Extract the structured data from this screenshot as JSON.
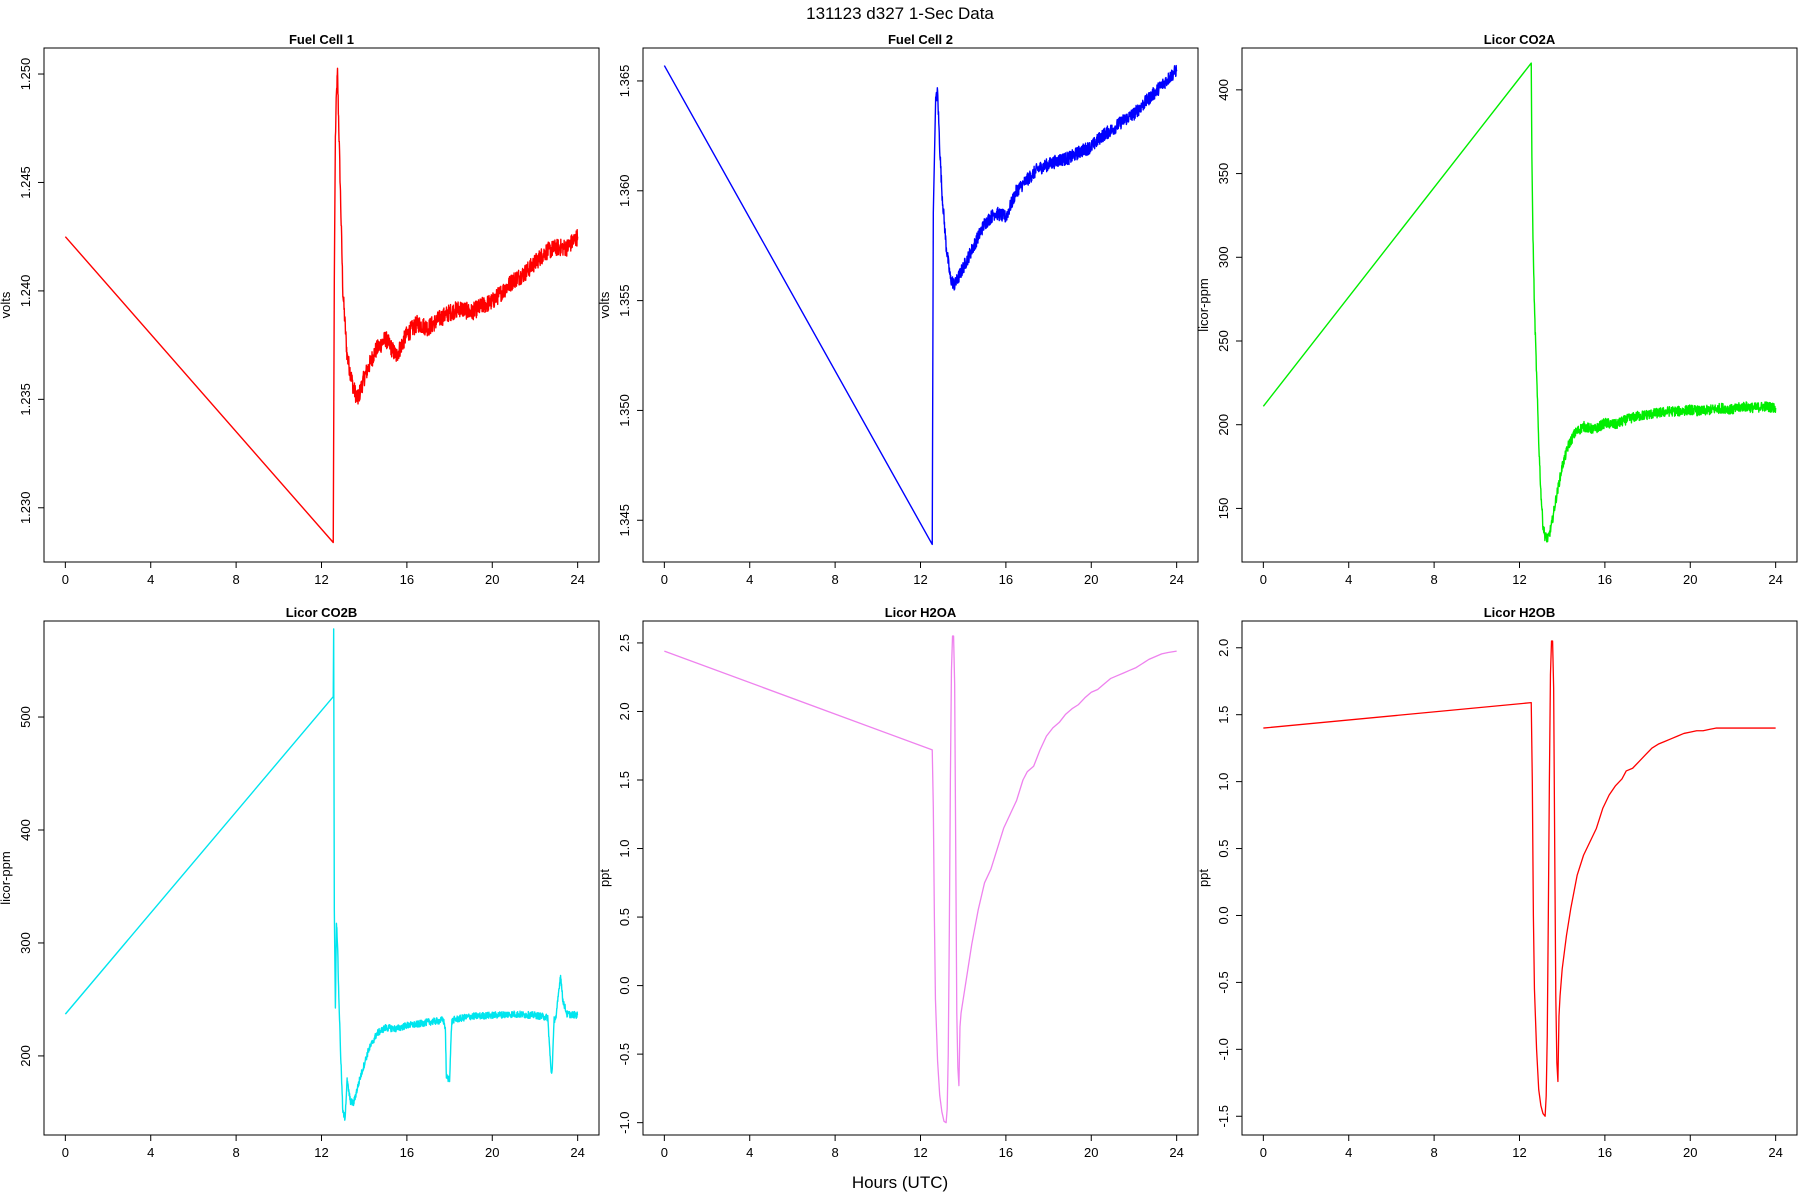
{
  "figure": {
    "title": "131123   d327   1-Sec Data",
    "xlabel": "Hours (UTC)"
  },
  "chart_data": [
    {
      "type": "line",
      "title": "Fuel Cell 1",
      "ylabel": "volts",
      "color": "#ff0000",
      "xlim": [
        -1,
        25
      ],
      "ylim": [
        1.2275,
        1.2512
      ],
      "xticks": [
        0,
        4,
        8,
        12,
        16,
        20,
        24
      ],
      "yticks": [
        1.23,
        1.235,
        1.24,
        1.245,
        1.25
      ],
      "ytick_labels": [
        "1.230",
        "1.235",
        "1.240",
        "1.245",
        "1.250"
      ],
      "noise": 0.0004,
      "x": [
        0,
        12.55,
        12.6,
        12.65,
        12.7,
        12.75,
        12.8,
        12.9,
        13.0,
        13.2,
        13.5,
        13.7,
        14.0,
        14.5,
        15.0,
        15.5,
        16.0,
        16.5,
        17.0,
        17.5,
        18.0,
        18.5,
        19.0,
        19.5,
        20.0,
        20.5,
        21.0,
        21.5,
        22.0,
        22.5,
        23.0,
        23.5,
        24.0
      ],
      "y": [
        1.2425,
        1.2284,
        1.2405,
        1.247,
        1.249,
        1.25,
        1.248,
        1.244,
        1.24,
        1.237,
        1.2355,
        1.235,
        1.236,
        1.2372,
        1.2378,
        1.237,
        1.238,
        1.2385,
        1.2383,
        1.2387,
        1.239,
        1.2392,
        1.239,
        1.2393,
        1.2395,
        1.24,
        1.2405,
        1.2408,
        1.2413,
        1.2418,
        1.242,
        1.242,
        1.2425
      ]
    },
    {
      "type": "line",
      "title": "Fuel Cell 2",
      "ylabel": "volts",
      "color": "#0000ff",
      "xlim": [
        -1,
        25
      ],
      "ylim": [
        1.3431,
        1.3665
      ],
      "xticks": [
        0,
        4,
        8,
        12,
        16,
        20,
        24
      ],
      "yticks": [
        1.345,
        1.35,
        1.355,
        1.36,
        1.365
      ],
      "ytick_labels": [
        "1.345",
        "1.350",
        "1.355",
        "1.360",
        "1.365"
      ],
      "noise": 0.0003,
      "x": [
        0,
        12.55,
        12.6,
        12.7,
        12.8,
        12.9,
        13.0,
        13.2,
        13.4,
        13.6,
        14.0,
        14.5,
        15.0,
        15.5,
        16.0,
        16.5,
        17.0,
        17.5,
        18.0,
        18.5,
        19.0,
        19.5,
        20.0,
        20.5,
        21.0,
        21.5,
        22.0,
        22.5,
        23.0,
        23.5,
        24.0
      ],
      "y": [
        1.3657,
        1.3439,
        1.359,
        1.364,
        1.3645,
        1.362,
        1.36,
        1.3575,
        1.356,
        1.3557,
        1.3565,
        1.3575,
        1.3585,
        1.359,
        1.3588,
        1.36,
        1.3605,
        1.361,
        1.3612,
        1.3614,
        1.3615,
        1.3618,
        1.362,
        1.3625,
        1.3628,
        1.3632,
        1.3635,
        1.364,
        1.3645,
        1.365,
        1.3655
      ]
    },
    {
      "type": "line",
      "title": "Licor CO2A",
      "ylabel": "licor-ppm",
      "color": "#00ee00",
      "xlim": [
        -1,
        25
      ],
      "ylim": [
        118,
        425
      ],
      "xticks": [
        0,
        4,
        8,
        12,
        16,
        20,
        24
      ],
      "yticks": [
        150,
        200,
        250,
        300,
        350,
        400
      ],
      "ytick_labels": [
        "150",
        "200",
        "250",
        "300",
        "350",
        "400"
      ],
      "noise": 3,
      "x": [
        0,
        12.55,
        12.58,
        12.62,
        12.7,
        12.8,
        12.9,
        13.0,
        13.1,
        13.2,
        13.35,
        13.5,
        13.7,
        14.0,
        14.3,
        14.6,
        15.0,
        15.5,
        16.0,
        16.5,
        17.0,
        17.5,
        18.0,
        18.5,
        19.0,
        19.5,
        20.0,
        20.5,
        21.0,
        21.5,
        22.0,
        22.5,
        23.0,
        23.5,
        24.0
      ],
      "y": [
        211,
        416,
        360,
        320,
        270,
        230,
        190,
        160,
        140,
        133,
        132,
        140,
        155,
        175,
        188,
        195,
        199,
        197,
        201,
        200,
        203,
        205,
        206,
        207,
        208,
        208,
        209,
        208,
        209,
        210,
        209,
        211,
        210,
        211,
        210
      ]
    },
    {
      "type": "line",
      "title": "Licor CO2B",
      "ylabel": "licor-ppm",
      "color": "#00e5ee",
      "xlim": [
        -1,
        25
      ],
      "ylim": [
        130,
        585
      ],
      "xticks": [
        0,
        4,
        8,
        12,
        16,
        20,
        24
      ],
      "yticks": [
        200,
        300,
        400,
        500
      ],
      "ytick_labels": [
        "200",
        "300",
        "400",
        "500"
      ],
      "noise": 3,
      "x": [
        0,
        12.55,
        12.57,
        12.6,
        12.65,
        12.7,
        12.75,
        12.8,
        12.9,
        13.0,
        13.1,
        13.2,
        13.35,
        13.5,
        13.8,
        14.2,
        14.6,
        15.0,
        15.5,
        16.0,
        16.5,
        17.0,
        17.5,
        17.7,
        17.8,
        17.85,
        17.9,
        18.0,
        18.1,
        18.2,
        19.0,
        20.0,
        21.0,
        22.0,
        22.6,
        22.75,
        22.8,
        22.9,
        23.0,
        23.1,
        23.2,
        23.3,
        23.5,
        24.0
      ],
      "y": [
        237,
        518,
        578,
        330,
        240,
        320,
        300,
        260,
        200,
        150,
        145,
        178,
        160,
        158,
        180,
        205,
        220,
        225,
        224,
        227,
        228,
        230,
        231,
        232,
        225,
        182,
        180,
        180,
        230,
        232,
        235,
        236,
        237,
        236,
        234,
        187,
        186,
        232,
        235,
        255,
        272,
        250,
        237,
        236
      ]
    },
    {
      "type": "line",
      "title": "Licor H2OA",
      "ylabel": "ppt",
      "color": "#ee82ee",
      "xlim": [
        -1,
        25
      ],
      "ylim": [
        -1.09,
        2.66
      ],
      "xticks": [
        0,
        4,
        8,
        12,
        16,
        20,
        24
      ],
      "yticks": [
        -1.0,
        -0.5,
        0.0,
        0.5,
        1.0,
        1.5,
        2.0,
        2.5
      ],
      "ytick_labels": [
        "-1.0",
        "-0.5",
        "0.0",
        "0.5",
        "1.0",
        "1.5",
        "2.0",
        "2.5"
      ],
      "noise": 0,
      "x": [
        0,
        12.55,
        12.6,
        12.65,
        12.7,
        12.8,
        12.9,
        13.0,
        13.1,
        13.2,
        13.25,
        13.3,
        13.35,
        13.4,
        13.45,
        13.5,
        13.55,
        13.6,
        13.65,
        13.7,
        13.75,
        13.8,
        13.85,
        13.9,
        14.0,
        14.2,
        14.4,
        14.7,
        15.0,
        15.3,
        15.6,
        15.9,
        16.2,
        16.5,
        16.8,
        17.0,
        17.3,
        17.6,
        17.9,
        18.2,
        18.5,
        18.8,
        19.1,
        19.4,
        19.7,
        20.0,
        20.3,
        20.6,
        20.9,
        21.2,
        21.5,
        21.8,
        22.1,
        22.4,
        22.7,
        23.0,
        23.3,
        23.6,
        24.0
      ],
      "y": [
        2.44,
        1.72,
        1.3,
        0.5,
        -0.1,
        -0.55,
        -0.8,
        -0.92,
        -0.99,
        -1.0,
        -0.9,
        -0.5,
        0.4,
        1.5,
        2.3,
        2.55,
        2.55,
        2.2,
        1.0,
        -0.2,
        -0.6,
        -0.73,
        -0.3,
        -0.2,
        -0.1,
        0.1,
        0.3,
        0.55,
        0.75,
        0.85,
        1.0,
        1.15,
        1.25,
        1.35,
        1.5,
        1.56,
        1.6,
        1.72,
        1.82,
        1.88,
        1.92,
        1.98,
        2.02,
        2.05,
        2.1,
        2.14,
        2.16,
        2.2,
        2.24,
        2.26,
        2.28,
        2.3,
        2.32,
        2.35,
        2.38,
        2.4,
        2.42,
        2.43,
        2.44
      ]
    },
    {
      "type": "line",
      "title": "Licor H2OB",
      "ylabel": "ppt",
      "color": "#ff0000",
      "xlim": [
        -1,
        25
      ],
      "ylim": [
        -1.64,
        2.2
      ],
      "xticks": [
        0,
        4,
        8,
        12,
        16,
        20,
        24
      ],
      "yticks": [
        -1.5,
        -1.0,
        -0.5,
        0.0,
        0.5,
        1.0,
        1.5,
        2.0
      ],
      "ytick_labels": [
        "-1.5",
        "-1.0",
        "-0.5",
        "0.0",
        "0.5",
        "1.0",
        "1.5",
        "2.0"
      ],
      "noise": 0,
      "x": [
        0,
        12.55,
        12.6,
        12.65,
        12.7,
        12.8,
        12.9,
        13.0,
        13.1,
        13.2,
        13.25,
        13.3,
        13.35,
        13.4,
        13.45,
        13.5,
        13.55,
        13.6,
        13.65,
        13.7,
        13.75,
        13.8,
        13.85,
        13.9,
        14.0,
        14.2,
        14.4,
        14.7,
        15.0,
        15.3,
        15.6,
        15.9,
        16.2,
        16.5,
        16.8,
        17.0,
        17.3,
        17.6,
        17.9,
        18.2,
        18.5,
        18.8,
        19.1,
        19.4,
        19.7,
        20.0,
        20.3,
        20.6,
        20.9,
        21.2,
        21.5,
        21.8,
        22.1,
        22.4,
        22.7,
        23.0,
        23.3,
        23.6,
        24.0
      ],
      "y": [
        1.4,
        1.59,
        1.0,
        0.0,
        -0.55,
        -1.0,
        -1.3,
        -1.42,
        -1.48,
        -1.5,
        -1.35,
        -0.9,
        0.0,
        1.0,
        1.8,
        2.05,
        2.05,
        1.7,
        0.5,
        -0.6,
        -1.1,
        -1.24,
        -0.75,
        -0.6,
        -0.4,
        -0.15,
        0.05,
        0.3,
        0.45,
        0.55,
        0.65,
        0.8,
        0.9,
        0.97,
        1.02,
        1.08,
        1.1,
        1.15,
        1.2,
        1.25,
        1.28,
        1.3,
        1.32,
        1.34,
        1.36,
        1.37,
        1.38,
        1.38,
        1.39,
        1.4,
        1.4,
        1.4,
        1.4,
        1.4,
        1.4,
        1.4,
        1.4,
        1.4,
        1.4
      ]
    }
  ]
}
